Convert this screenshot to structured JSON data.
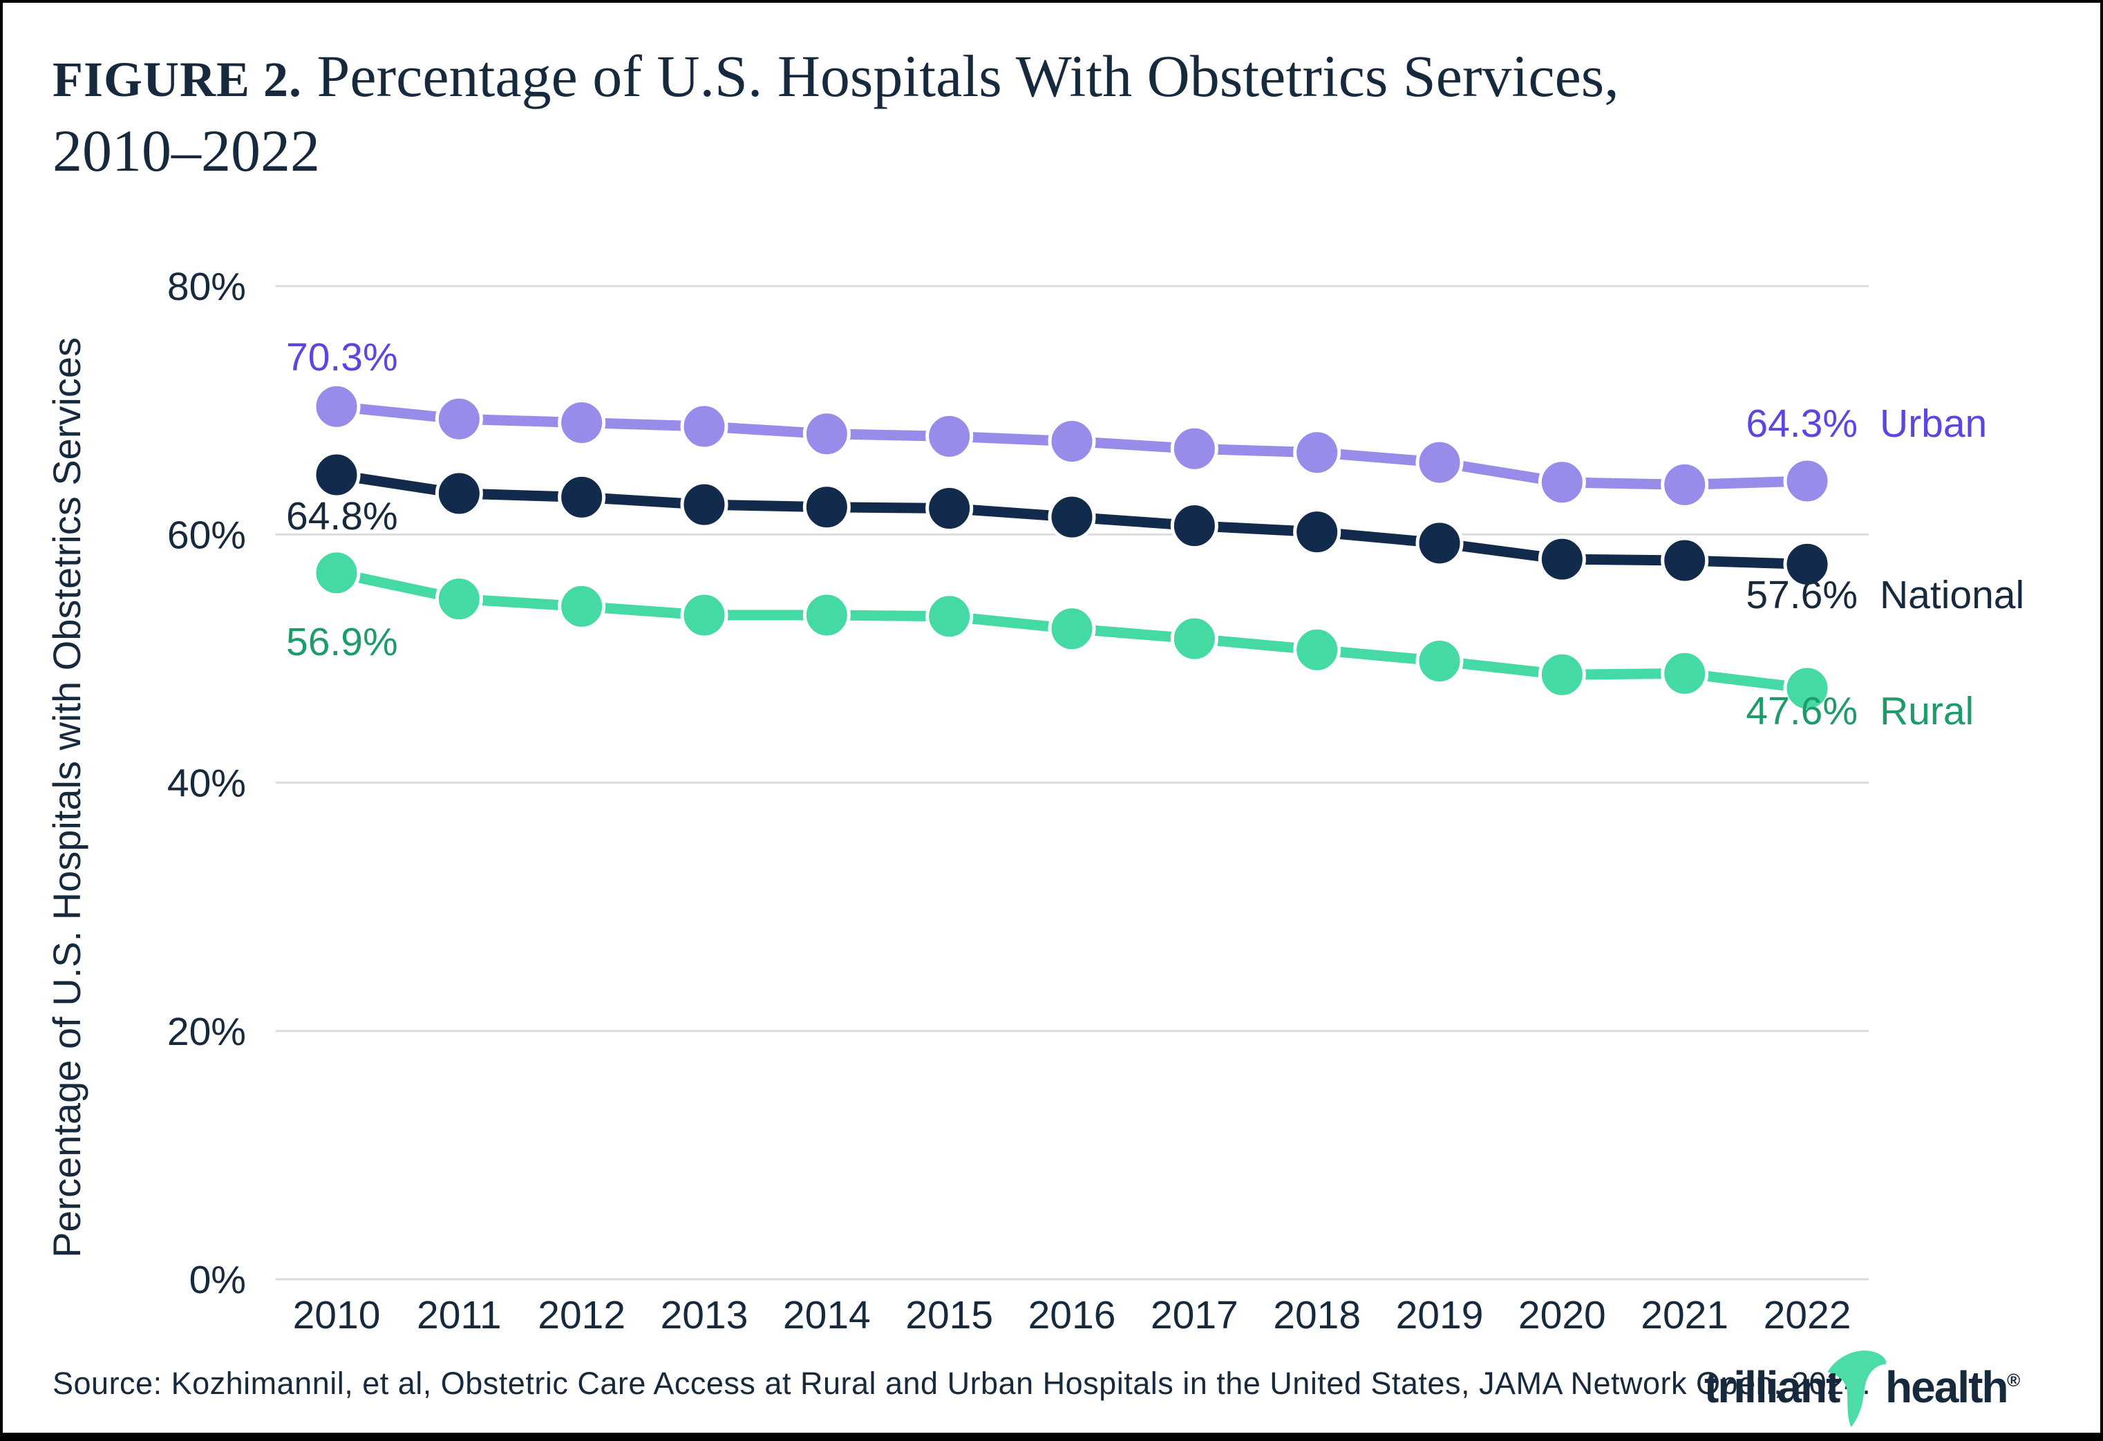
{
  "page": {
    "figure_label": "FIGURE 2.",
    "title_rest": " Percentage of U.S. Hospitals With Obstetrics Services,",
    "title_line2": "2010–2022",
    "source": "Source: Kozhimannil, et al, Obstetric Care Access at Rural and Urban Hospitals in the United States, JAMA Network Open, 2024.",
    "logo": {
      "part1": "trilliant",
      "part2": "health",
      "registered": "®",
      "swoosh_icon": "green-leaf-swoosh",
      "swoosh_color": "#4BDCA7",
      "text_color": "#16293D"
    }
  },
  "chart_data": {
    "type": "line",
    "title": "Percentage of U.S. Hospitals With Obstetrics Services, 2010–2022",
    "ylabel": "Percentage of U.S. Hospitals with Obstetrics Services",
    "xlabel": "",
    "x": [
      2010,
      2011,
      2012,
      2013,
      2014,
      2015,
      2016,
      2017,
      2018,
      2019,
      2020,
      2021,
      2022
    ],
    "ylim": [
      0,
      80
    ],
    "yticks": [
      {
        "value": 0,
        "label": "0%"
      },
      {
        "value": 20,
        "label": "20%"
      },
      {
        "value": 40,
        "label": "40%"
      },
      {
        "value": 60,
        "label": "60%"
      },
      {
        "value": 80,
        "label": "80%"
      }
    ],
    "grid": true,
    "legend_position": "inline-end-labels",
    "gridline_color": "#DBDBDB",
    "axis_text_color": "#17293C",
    "series": [
      {
        "name": "Urban",
        "line_color": "#978CE9",
        "label_color": "#5A47E0",
        "start_label": "70.3%",
        "end_label": "64.3%",
        "values": [
          70.3,
          69.3,
          69.0,
          68.7,
          68.1,
          67.9,
          67.5,
          66.9,
          66.6,
          65.8,
          64.2,
          64.0,
          64.3
        ]
      },
      {
        "name": "National",
        "line_color": "#122A4B",
        "label_color": "#17293C",
        "start_label": "64.8%",
        "end_label": "57.6%",
        "values": [
          64.8,
          63.3,
          63.0,
          62.4,
          62.2,
          62.1,
          61.4,
          60.7,
          60.2,
          59.3,
          58.0,
          57.9,
          57.6
        ]
      },
      {
        "name": "Rural",
        "line_color": "#45D9A3",
        "label_color": "#1D9C69",
        "start_label": "56.9%",
        "end_label": "47.6%",
        "values": [
          56.9,
          54.8,
          54.2,
          53.5,
          53.5,
          53.4,
          52.4,
          51.6,
          50.7,
          49.8,
          48.7,
          48.8,
          47.6
        ]
      }
    ]
  }
}
